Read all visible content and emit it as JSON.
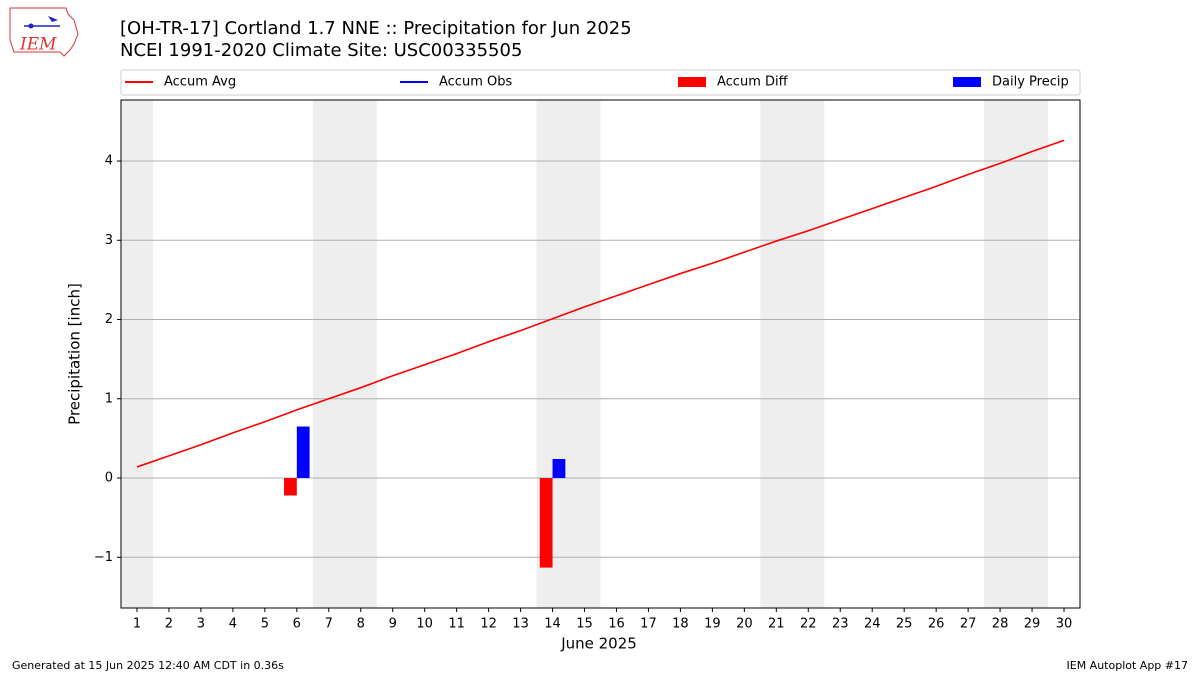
{
  "logo_text": "IEM",
  "chart_data": {
    "type": "combo",
    "title": "[OH-TR-17] Cortland 1.7 NNE :: Precipitation for Jun 2025",
    "subtitle": "NCEI 1991-2020 Climate Site: USC00335505",
    "xlabel": "June 2025",
    "ylabel": "Precipitation [inch]",
    "x": [
      1,
      2,
      3,
      4,
      5,
      6,
      7,
      8,
      9,
      10,
      11,
      12,
      13,
      14,
      15,
      16,
      17,
      18,
      19,
      20,
      21,
      22,
      23,
      24,
      25,
      26,
      27,
      28,
      29,
      30
    ],
    "xlim": [
      0.5,
      30.5
    ],
    "xticks": [
      1,
      2,
      3,
      4,
      5,
      6,
      7,
      8,
      9,
      10,
      11,
      12,
      13,
      14,
      15,
      16,
      17,
      18,
      19,
      20,
      21,
      22,
      23,
      24,
      25,
      26,
      27,
      28,
      29,
      30
    ],
    "ylim": [
      -1.64,
      4.77
    ],
    "yticks": [
      {
        "value": -1,
        "label": "−1"
      },
      0,
      1,
      2,
      3,
      4
    ],
    "grid": true,
    "shaded_ranges": [
      [
        0.5,
        1.5
      ],
      [
        6.5,
        8.5
      ],
      [
        13.5,
        15.5
      ],
      [
        20.5,
        22.5
      ],
      [
        27.5,
        29.5
      ]
    ],
    "shade_color": "#eeeeee",
    "series": [
      {
        "name": "Accum Avg",
        "type": "line",
        "color": "#ff0000",
        "values": [
          0.14,
          0.28,
          0.42,
          0.57,
          0.71,
          0.86,
          1.0,
          1.14,
          1.29,
          1.43,
          1.57,
          1.72,
          1.86,
          2.01,
          2.16,
          2.3,
          2.44,
          2.58,
          2.71,
          2.85,
          2.99,
          3.12,
          3.26,
          3.4,
          3.54,
          3.68,
          3.83,
          3.97,
          4.12,
          4.26
        ]
      },
      {
        "name": "Accum Obs",
        "type": "line",
        "color": "#0000ff"
      },
      {
        "name": "Accum Diff",
        "type": "bar",
        "color": "#ff0000",
        "values": [
          null,
          null,
          null,
          null,
          null,
          -0.22,
          null,
          null,
          null,
          null,
          null,
          null,
          null,
          -1.13,
          null,
          null,
          null,
          null,
          null,
          null,
          null,
          null,
          null,
          null,
          null,
          null,
          null,
          null,
          null,
          null
        ]
      },
      {
        "name": "Daily Precip",
        "type": "bar",
        "color": "#0000ff",
        "values": [
          null,
          null,
          null,
          null,
          null,
          0.65,
          null,
          null,
          null,
          null,
          null,
          null,
          null,
          0.24,
          null,
          null,
          null,
          null,
          null,
          null,
          null,
          null,
          null,
          null,
          null,
          null,
          null,
          null,
          null,
          null
        ]
      }
    ],
    "footer_left": "Generated at 15 Jun 2025 12:40 AM CDT in 0.36s",
    "footer_right": "IEM Autoplot App #17"
  }
}
